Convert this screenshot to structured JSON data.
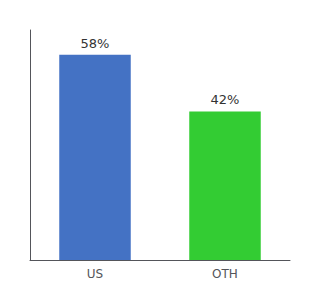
{
  "chart_data": {
    "type": "bar",
    "categories": [
      "US",
      "OTH"
    ],
    "values": [
      58,
      42
    ],
    "value_labels": [
      "58%",
      "42%"
    ],
    "colors": [
      "#4472C4",
      "#33CC33"
    ],
    "ylim": [
      0,
      65
    ],
    "data_labels": true,
    "tick_labels": "x",
    "grid": false
  }
}
